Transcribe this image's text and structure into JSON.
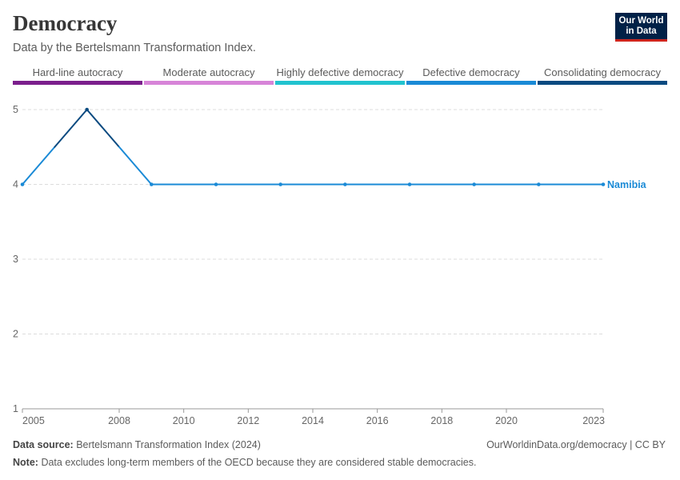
{
  "header": {
    "title": "Democracy",
    "subtitle": "Data by the Bertelsmann Transformation Index."
  },
  "logo": {
    "line1": "Our World",
    "line2": "in Data"
  },
  "legend": [
    {
      "label": "Hard-line autocracy",
      "color": "#7b1f8c"
    },
    {
      "label": "Moderate autocracy",
      "color": "#d784d8"
    },
    {
      "label": "Highly defective democracy",
      "color": "#21c3cf"
    },
    {
      "label": "Defective democracy",
      "color": "#1a8ad6"
    },
    {
      "label": "Consolidating democracy",
      "color": "#0a4a80"
    }
  ],
  "chart_data": {
    "type": "line",
    "title": "Democracy",
    "xlabel": "",
    "ylabel": "",
    "xlim": [
      2005,
      2023
    ],
    "ylim": [
      1,
      5
    ],
    "grid": true,
    "x_ticks": [
      2005,
      2008,
      2010,
      2012,
      2014,
      2016,
      2018,
      2020,
      2023
    ],
    "y_ticks": [
      1,
      2,
      3,
      4,
      5
    ],
    "series": [
      {
        "name": "Namibia",
        "color": "#1a8ad6",
        "x": [
          2005,
          2007,
          2009,
          2011,
          2013,
          2015,
          2017,
          2019,
          2021,
          2023
        ],
        "y": [
          4,
          5,
          4,
          4,
          4,
          4,
          4,
          4,
          4,
          4
        ]
      }
    ]
  },
  "footer": {
    "source_label": "Data source:",
    "source_text": "Bertelsmann Transformation Index (2024)",
    "note_label": "Note:",
    "note_text": "Data excludes long-term members of the OECD because they are considered stable democracies.",
    "credit": "OurWorldinData.org/democracy | CC BY"
  }
}
